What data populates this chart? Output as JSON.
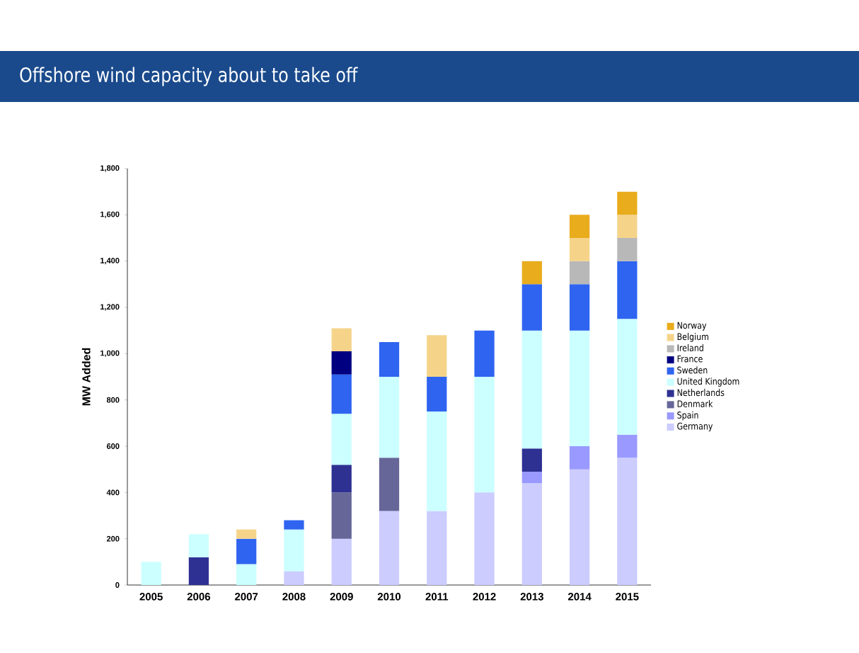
{
  "chart_data": {
    "type": "bar",
    "title": "Offshore wind capacity about to take off",
    "ylabel": "MW Added",
    "stacked": true,
    "legend": "right",
    "categories": [
      "2005",
      "2006",
      "2007",
      "2008",
      "2009",
      "2010",
      "2011",
      "2012",
      "2013",
      "2014",
      "2015"
    ],
    "ylim": [
      0,
      1800
    ],
    "yticks": [
      0,
      {
        "value": 200,
        "label": "200"
      },
      {
        "value": 400,
        "label": "400"
      },
      {
        "value": 600,
        "label": "600"
      },
      {
        "value": 800,
        "label": "800"
      },
      {
        "value": 1000,
        "label": "1,000"
      },
      {
        "value": 1200,
        "label": "1,200"
      },
      {
        "value": 1400,
        "label": "1,400"
      },
      {
        "value": 1600,
        "label": "1,600"
      },
      {
        "value": 1800,
        "label": "1,800"
      }
    ],
    "series": [
      {
        "name": "Germany",
        "color": "#ccccff",
        "values": [
          null,
          null,
          null,
          60,
          200,
          320,
          320,
          400,
          440,
          500,
          550
        ]
      },
      {
        "name": "Spain",
        "color": "#9999ff",
        "values": [
          null,
          null,
          null,
          null,
          null,
          null,
          null,
          null,
          50,
          100,
          100
        ]
      },
      {
        "name": "Denmark",
        "color": "#666699",
        "values": [
          null,
          null,
          null,
          null,
          200,
          230,
          null,
          null,
          null,
          null,
          null
        ]
      },
      {
        "name": "Netherlands",
        "color": "#2e3192",
        "values": [
          null,
          120,
          null,
          null,
          120,
          null,
          null,
          null,
          100,
          null,
          null
        ]
      },
      {
        "name": "United Kingdom",
        "color": "#ccffff",
        "values": [
          100,
          100,
          90,
          180,
          220,
          350,
          430,
          500,
          510,
          500,
          500
        ]
      },
      {
        "name": "Sweden",
        "color": "#2e64f0",
        "values": [
          null,
          null,
          110,
          40,
          170,
          150,
          150,
          200,
          200,
          200,
          250
        ]
      },
      {
        "name": "France",
        "color": "#000080",
        "values": [
          null,
          null,
          null,
          null,
          100,
          null,
          null,
          null,
          null,
          null,
          null
        ]
      },
      {
        "name": "Ireland",
        "color": "#b8b8b8",
        "values": [
          null,
          null,
          null,
          null,
          null,
          null,
          null,
          null,
          null,
          100,
          100
        ]
      },
      {
        "name": "Belgium",
        "color": "#f5d48a",
        "values": [
          null,
          null,
          40,
          null,
          100,
          null,
          180,
          null,
          null,
          100,
          100
        ]
      },
      {
        "name": "Norway",
        "color": "#e8ac1c",
        "values": [
          null,
          null,
          null,
          null,
          null,
          null,
          null,
          null,
          100,
          100,
          100
        ]
      }
    ]
  }
}
